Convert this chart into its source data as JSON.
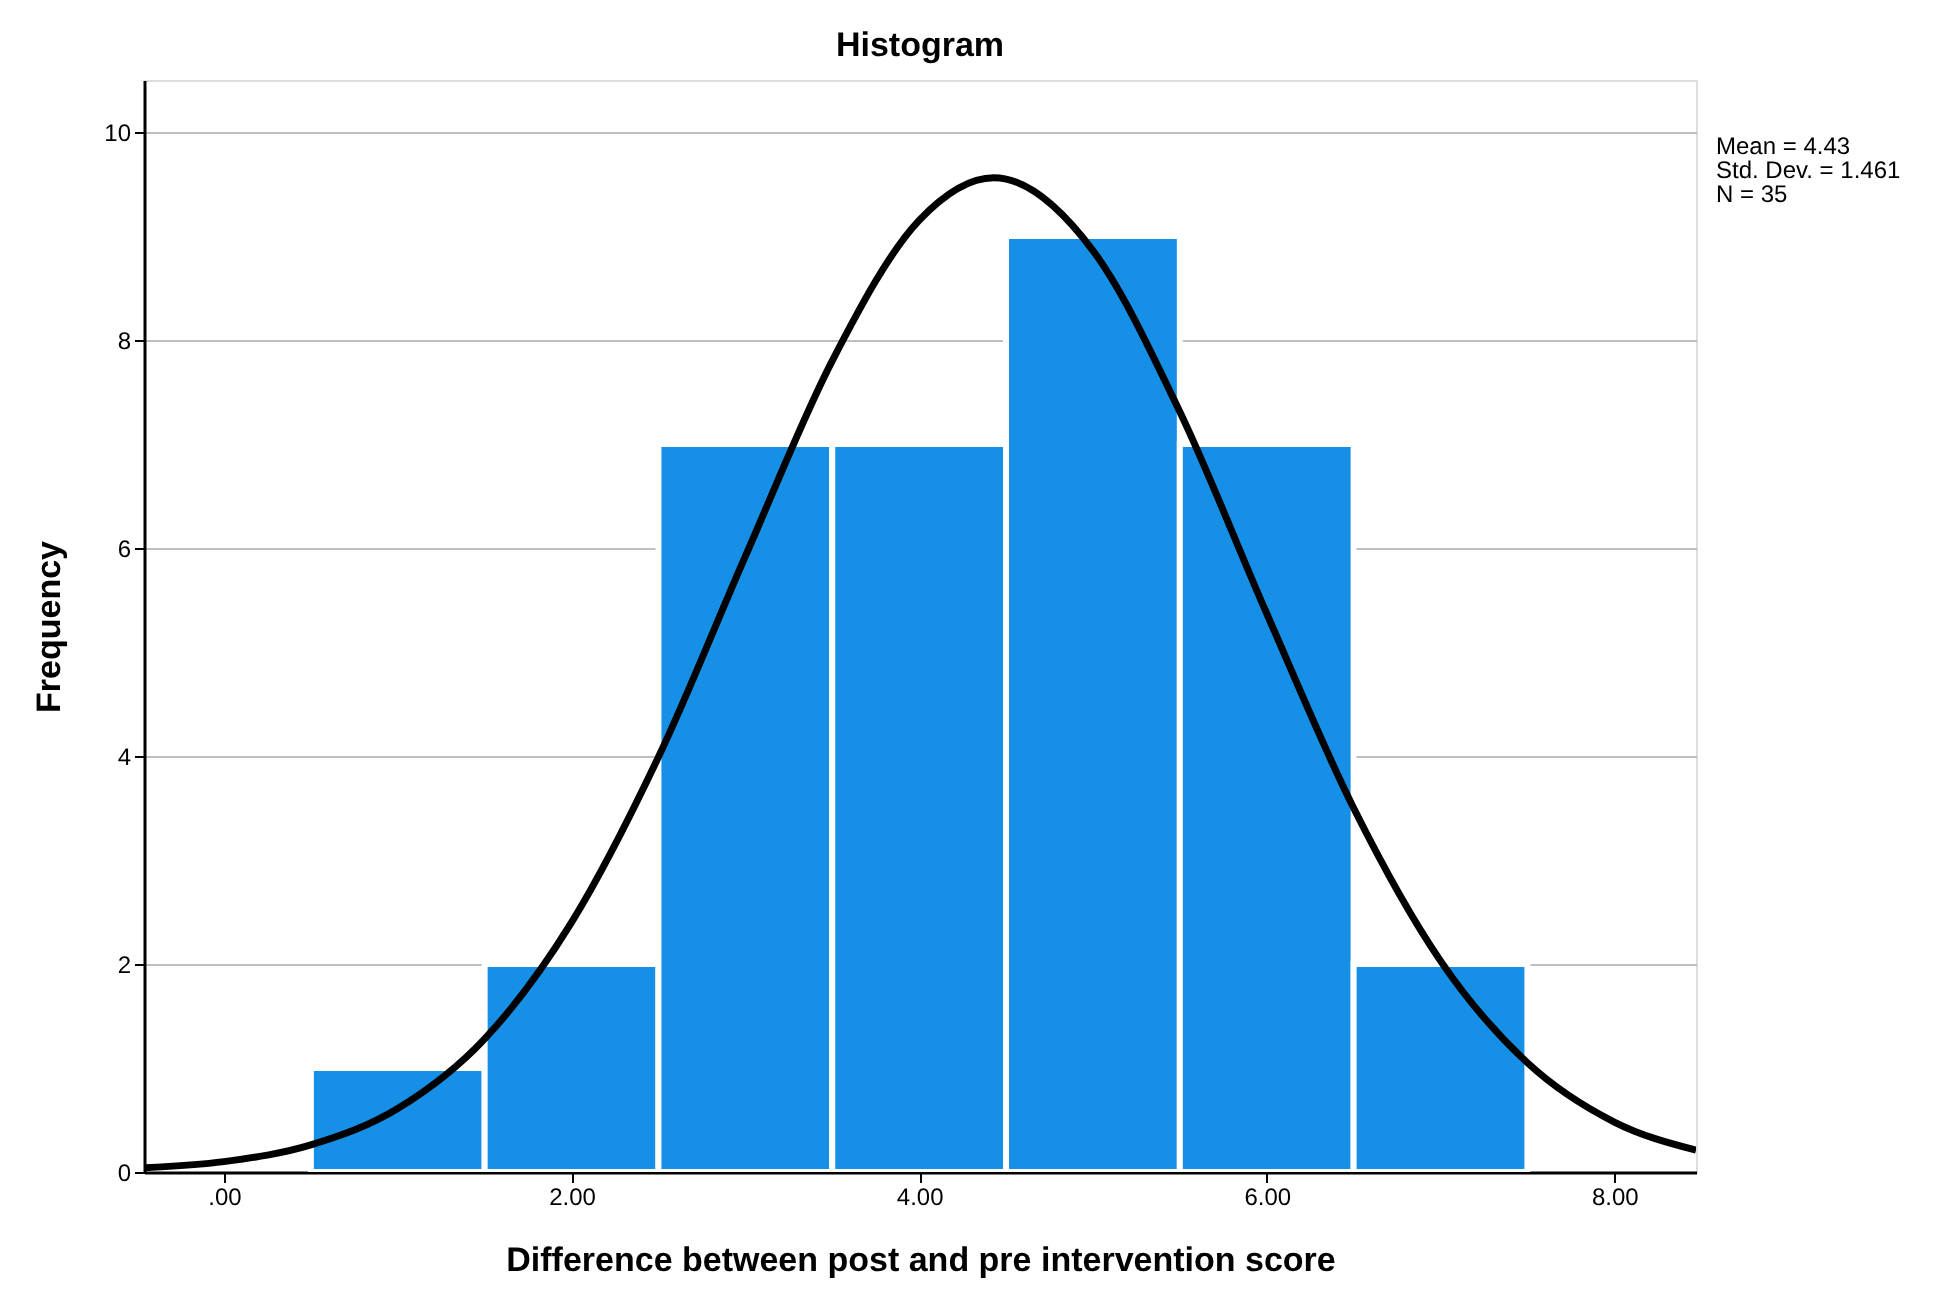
{
  "chart_data": {
    "type": "histogram",
    "title": "Histogram",
    "xlabel": "Difference between post and pre intervention score",
    "ylabel": "Frequency",
    "series": [
      {
        "type": "histogram",
        "color": "#1590e6",
        "bins": [
          0.5,
          1.5,
          2.5,
          3.5,
          4.5,
          5.5,
          6.5,
          7.5
        ],
        "values": [
          1,
          2,
          7,
          7,
          9,
          7,
          2
        ]
      },
      {
        "type": "line",
        "color": "#000000",
        "x": [
          -0.46,
          0,
          0.5,
          1,
          1.5,
          2,
          2.5,
          3,
          3.5,
          4,
          4.43,
          5,
          5.5,
          6,
          6.5,
          7,
          7.5,
          8,
          8.47
        ],
        "values": [
          0.04,
          0.1,
          0.26,
          0.61,
          1.28,
          2.4,
          3.99,
          5.92,
          7.8,
          9.15,
          9.56,
          8.86,
          7.31,
          5.37,
          3.5,
          2.03,
          1.05,
          0.48,
          0.21
        ]
      }
    ],
    "xlim": [
      -0.46,
      8.47
    ],
    "xticks": [
      {
        "value": 0,
        "label": ".00"
      },
      {
        "value": 2,
        "label": "2.00"
      },
      {
        "value": 4,
        "label": "4.00"
      },
      {
        "value": 6,
        "label": "6.00"
      },
      {
        "value": 8,
        "label": "8.00"
      }
    ],
    "ylim": [
      0,
      10.5
    ],
    "yticks": [
      0,
      2,
      4,
      6,
      8,
      10
    ],
    "grid": "y",
    "annotations": [
      "Mean = 4.43",
      "Std. Dev. = 1.461",
      "N = 35"
    ]
  }
}
